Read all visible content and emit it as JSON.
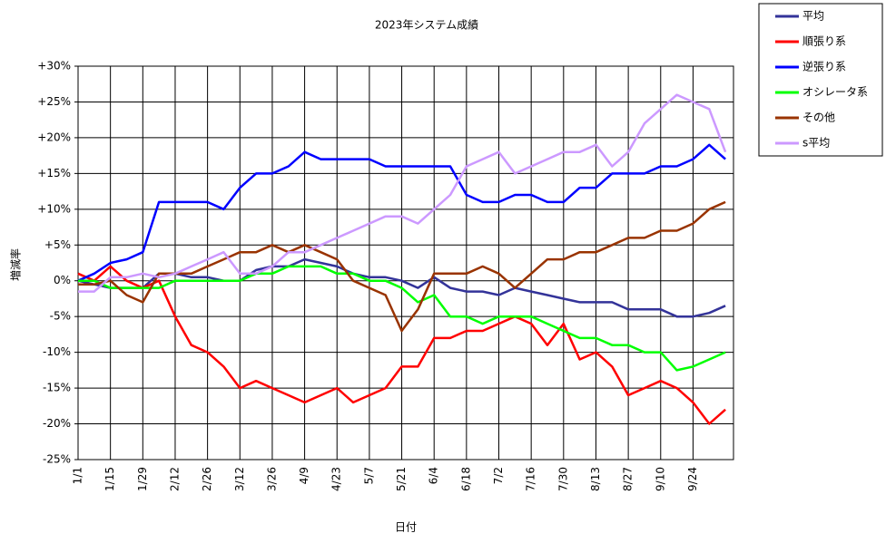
{
  "chart_data": {
    "type": "line",
    "title": "2023年システム成績",
    "x_label": "日付",
    "y_label": "増減率",
    "categories": [
      "1/1",
      null,
      "1/15",
      null,
      "1/29",
      null,
      "2/12",
      null,
      "2/26",
      null,
      "3/12",
      null,
      "3/26",
      null,
      "4/9",
      null,
      "4/23",
      null,
      "5/7",
      null,
      "5/21",
      null,
      "6/4",
      null,
      "6/18",
      null,
      "7/2",
      null,
      "7/16",
      null,
      "7/30",
      null,
      "8/13",
      null,
      "8/27",
      null,
      "9/10",
      null,
      "9/24",
      null,
      null
    ],
    "ylim": [
      -25,
      30
    ],
    "yticks": [
      {
        "value": -25,
        "label": "-25%"
      },
      {
        "value": -20,
        "label": "-20%"
      },
      {
        "value": -15,
        "label": "-15%"
      },
      {
        "value": -10,
        "label": "-10%"
      },
      {
        "value": -5,
        "label": "-5%"
      },
      {
        "value": 0,
        "label": "0%"
      },
      {
        "value": 5,
        "label": "+5%"
      },
      {
        "value": 10,
        "label": "+10%"
      },
      {
        "value": 15,
        "label": "+15%"
      },
      {
        "value": 20,
        "label": "+20%"
      },
      {
        "value": 25,
        "label": "+25%"
      },
      {
        "value": 30,
        "label": "+30%"
      }
    ],
    "grid": true,
    "legend": "top-right",
    "series": [
      {
        "name": "平均",
        "color": "#333399",
        "values": [
          0,
          -0.5,
          -1,
          -1,
          -1,
          1,
          1,
          0.5,
          0.5,
          0,
          0,
          1.5,
          2,
          2,
          3,
          2.5,
          2,
          1,
          0.5,
          0.5,
          0,
          -1,
          0.5,
          -1,
          -1.5,
          -1.5,
          -2,
          -1,
          -1.5,
          -2,
          -2.5,
          -3,
          -3,
          -3,
          -4,
          -4,
          -4,
          -5,
          -5,
          -4.5,
          -3.5
        ]
      },
      {
        "name": "順張り系",
        "color": "#ff0000",
        "values": [
          1,
          0,
          2,
          0,
          -1,
          0,
          -5,
          -9,
          -10,
          -12,
          -15,
          -14,
          -15,
          -16,
          -17,
          -16,
          -15,
          -17,
          -16,
          -15,
          -12,
          -12,
          -8,
          -8,
          -7,
          -7,
          -6,
          -5,
          -6,
          -9,
          -6,
          -11,
          -10,
          -12,
          -16,
          -15,
          -14,
          -15,
          -17,
          -20,
          -18
        ]
      },
      {
        "name": "逆張り系",
        "color": "#0000ff",
        "values": [
          0,
          1,
          2.5,
          3,
          4,
          11,
          11,
          11,
          11,
          10,
          13,
          15,
          15,
          16,
          18,
          17,
          17,
          17,
          17,
          16,
          16,
          16,
          16,
          16,
          12,
          11,
          11,
          12,
          12,
          11,
          11,
          13,
          13,
          15,
          15,
          15,
          16,
          16,
          17,
          19,
          17
        ]
      },
      {
        "name": "オシレータ系",
        "color": "#00ff00",
        "values": [
          0,
          0,
          -1,
          -1,
          -1,
          -1,
          0,
          0,
          0,
          0,
          0,
          1,
          1,
          2,
          2,
          2,
          1,
          1,
          0,
          0,
          -1,
          -3,
          -2,
          -5,
          -5,
          -6,
          -5,
          -5,
          -5,
          -6,
          -7,
          -8,
          -8,
          -9,
          -9,
          -10,
          -10,
          -12.5,
          -12,
          -11,
          -10
        ]
      },
      {
        "name": "その他",
        "color": "#993300",
        "values": [
          -0.5,
          -0.5,
          0,
          -2,
          -3,
          1,
          1,
          1,
          2,
          3,
          4,
          4,
          5,
          4,
          5,
          4,
          3,
          0,
          -1,
          -2,
          -7,
          -4,
          1,
          1,
          1,
          2,
          1,
          -1,
          1,
          3,
          3,
          4,
          4,
          5,
          6,
          6,
          7,
          7,
          8,
          10,
          11
        ]
      },
      {
        "name": "s平均",
        "color": "#cc99ff",
        "values": [
          -1.5,
          -1.5,
          0.5,
          0.5,
          1,
          0.5,
          1,
          2,
          3,
          4,
          1,
          1,
          2,
          4,
          4,
          5,
          6,
          7,
          8,
          9,
          9,
          8,
          10,
          12,
          16,
          17,
          18,
          15,
          16,
          17,
          18,
          18,
          19,
          16,
          18,
          22,
          24,
          26,
          25,
          24,
          18
        ]
      }
    ]
  }
}
